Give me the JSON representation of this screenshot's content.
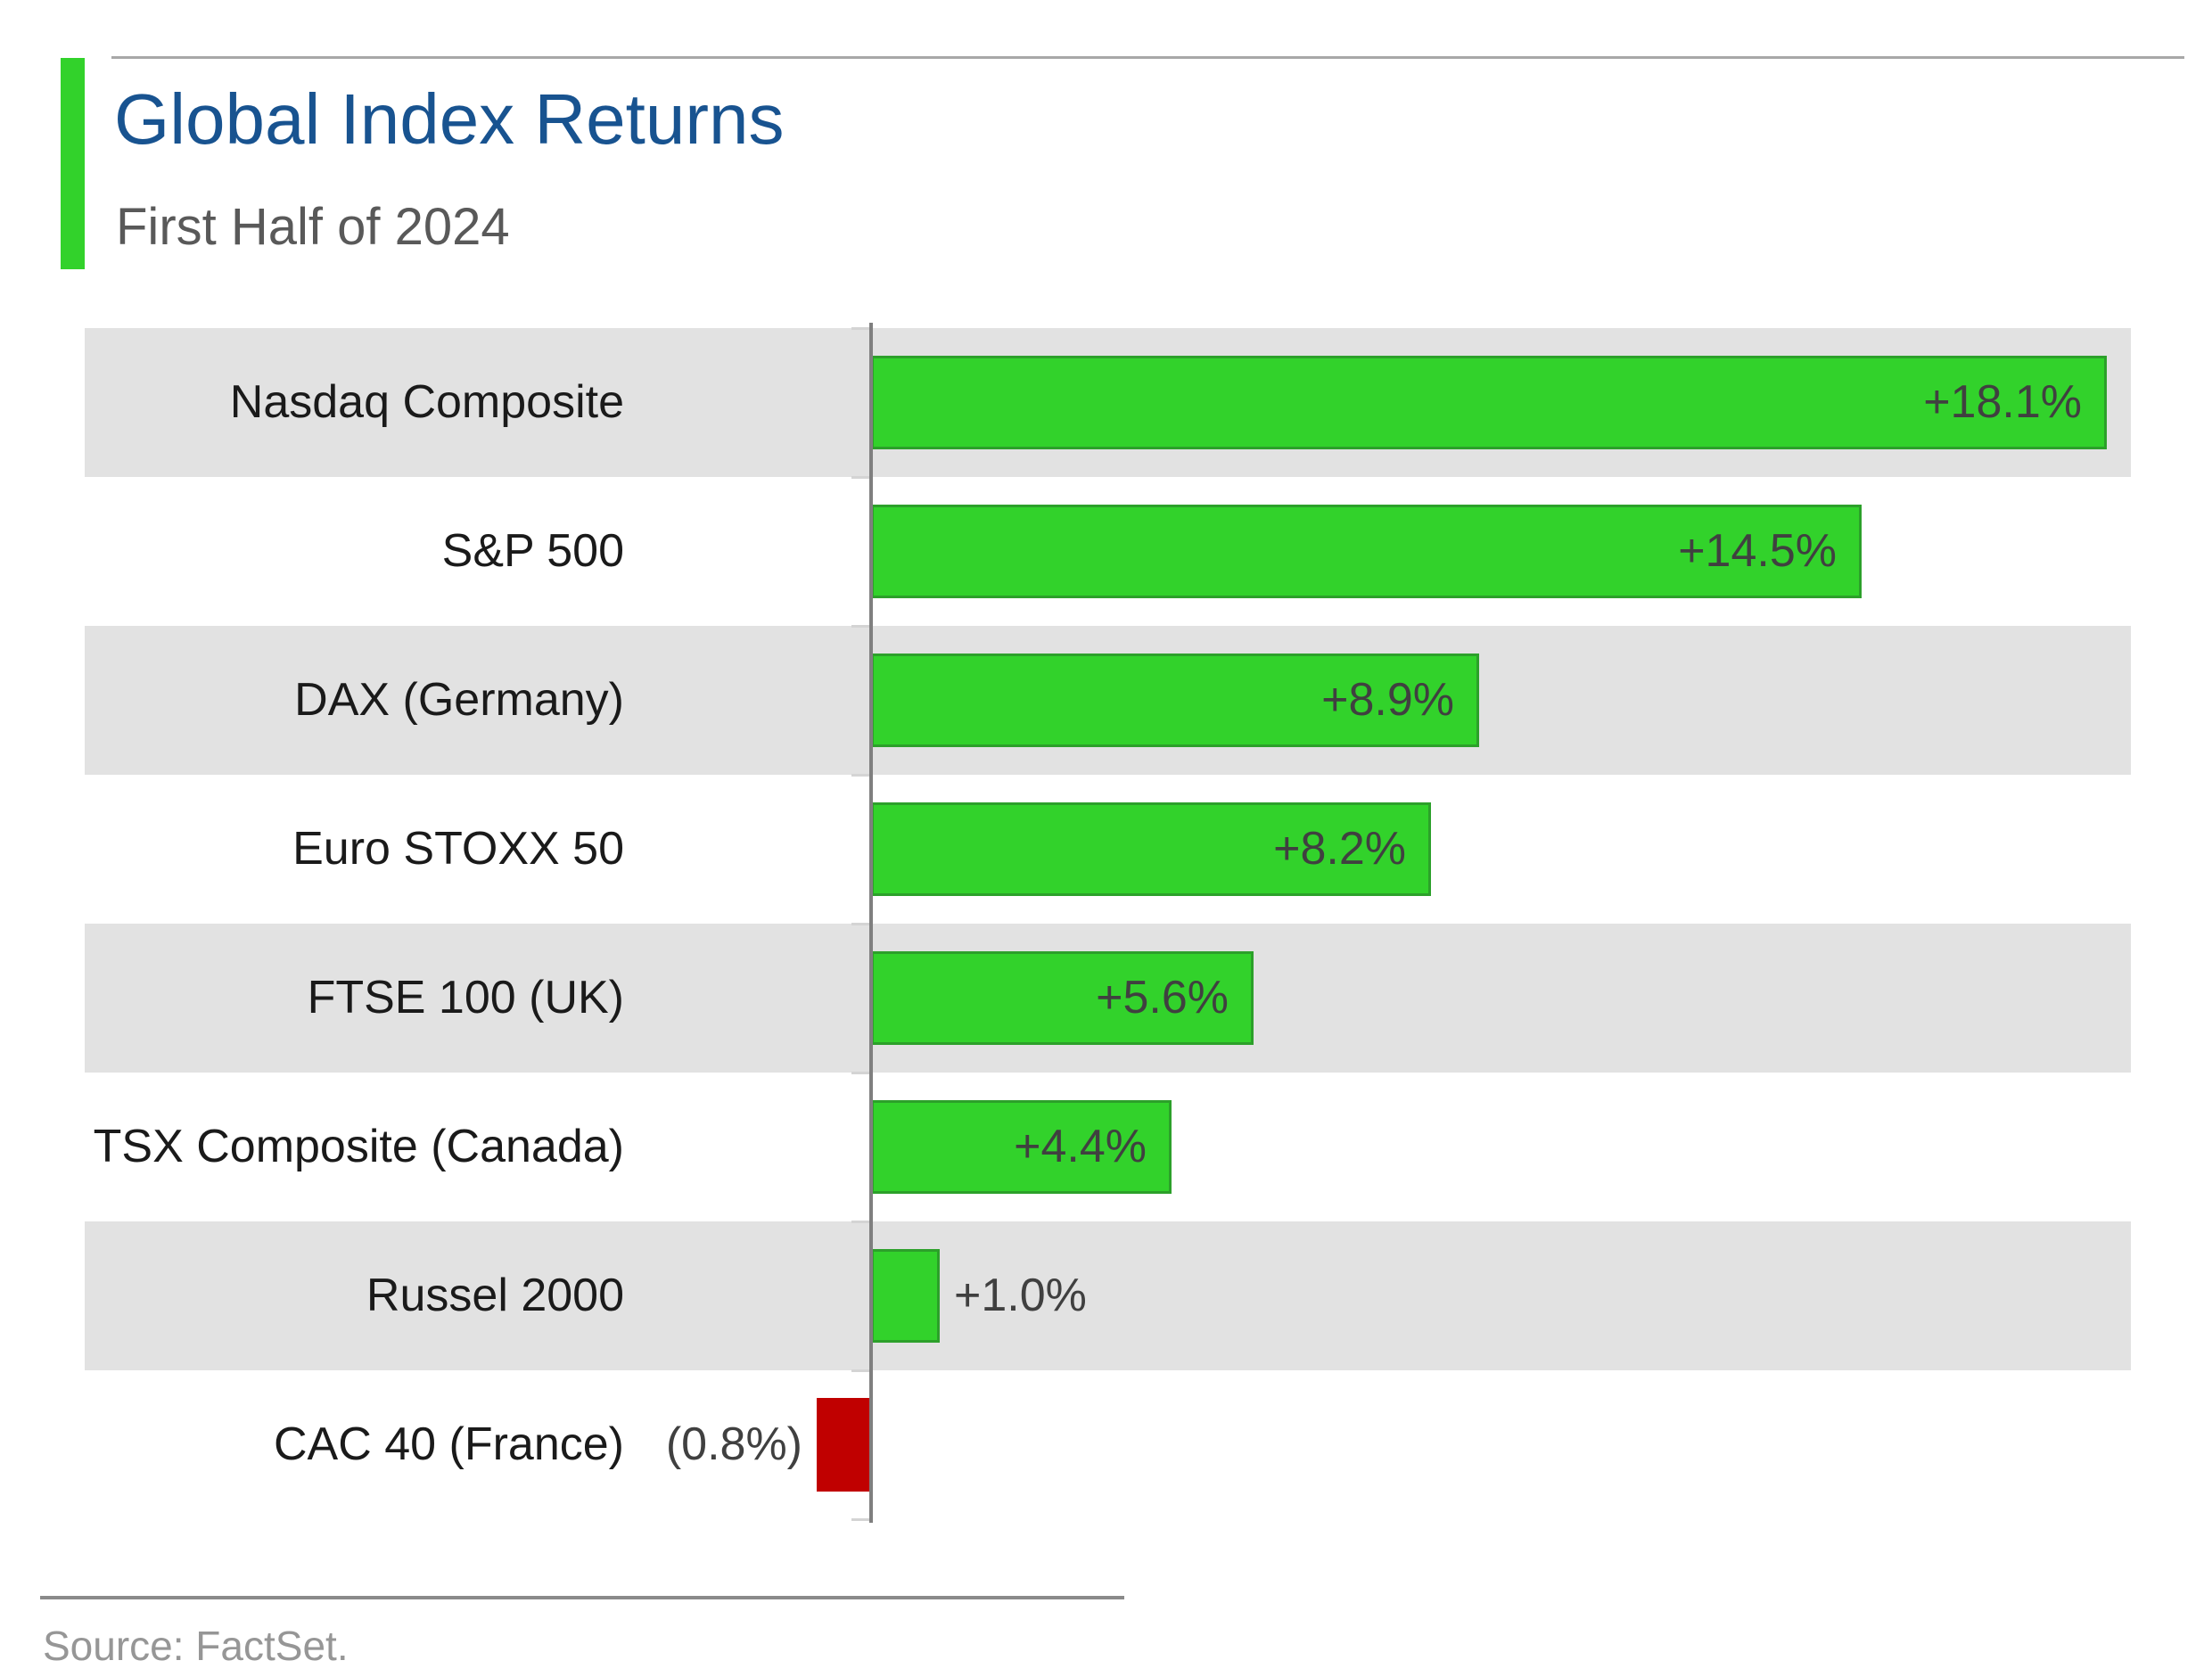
{
  "header": {
    "title": "Global Index Returns",
    "subtitle": "First Half of 2024"
  },
  "footer": {
    "source": "Source: FactSet."
  },
  "chart_data": {
    "type": "bar",
    "orientation": "horizontal",
    "title": "Global Index Returns",
    "subtitle": "First Half of 2024",
    "categories": [
      "Nasdaq Composite",
      "S&P 500",
      "DAX (Germany)",
      "Euro STOXX 50",
      "FTSE 100 (UK)",
      "TSX Composite (Canada)",
      "Russel 2000",
      "CAC 40 (France)"
    ],
    "values": [
      18.1,
      14.5,
      8.9,
      8.2,
      5.6,
      4.4,
      1.0,
      -0.8
    ],
    "data_labels": [
      "+18.1%",
      "+14.5%",
      "+8.9%",
      "+8.2%",
      "+5.6%",
      "+4.4%",
      "+1.0%",
      "(0.8%)"
    ],
    "unit": "%",
    "xlim": [
      -2,
      18.5
    ],
    "baseline": 0,
    "grid": false,
    "legend": false,
    "row_striping": "alternating gray bands starting with first row",
    "source": "Source: FactSet."
  },
  "colors": {
    "positive_bar": "#32d22b",
    "positive_bar_border": "#2ca02a",
    "negative_bar": "#c00000",
    "accent_bar": "#32d22b",
    "title_text": "#185390",
    "subtitle_text": "#595959",
    "category_text": "#1a1a1a",
    "value_text": "#404040",
    "row_band": "#e2e2e2",
    "axis_line": "#7f7f7f",
    "tick": "#d4d4d4",
    "rule": "#a8a8a8",
    "source_text": "#969696"
  }
}
